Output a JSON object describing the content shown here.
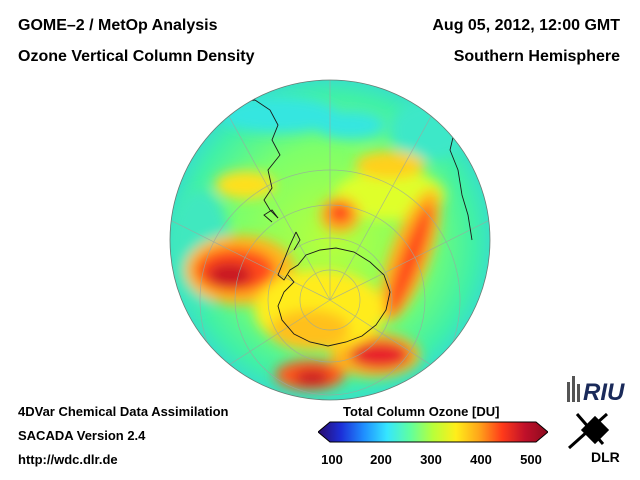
{
  "header": {
    "title_line1": "GOME–2 / MetOp Analysis",
    "title_line2": "Ozone Vertical Column Density",
    "datetime": "Aug 05, 2012, 12:00 GMT",
    "hemisphere": "Southern Hemisphere"
  },
  "footer": {
    "line1": "4DVar Chemical Data Assimilation",
    "line2": "SACADA Version 2.4",
    "line3": "http://wdc.dlr.de"
  },
  "colorbar": {
    "title": "Total Column Ozone [DU]",
    "ticks": [
      "100",
      "200",
      "300",
      "400",
      "500"
    ],
    "colors": [
      "#2a0a6b",
      "#1c2fd8",
      "#1f8fff",
      "#35e6ff",
      "#5fffa0",
      "#b8ff3a",
      "#ffee1a",
      "#ffa51a",
      "#ff3b1a",
      "#c0102a",
      "#8a0a1e"
    ]
  },
  "logos": {
    "riu_text": "RIU",
    "dlr_text": "DLR"
  },
  "map": {
    "projection": "orthographic-south-pole",
    "background_color": "#3fe6a0"
  }
}
